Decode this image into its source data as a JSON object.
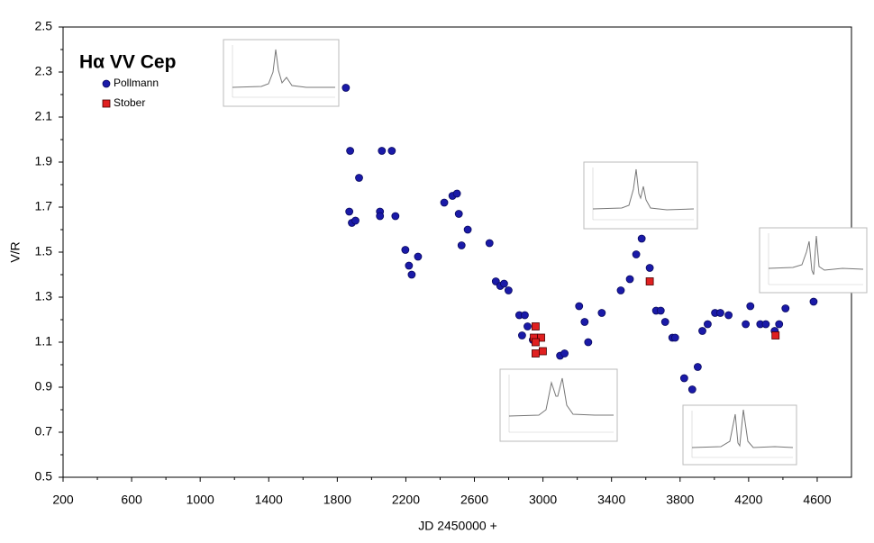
{
  "chart_data": {
    "type": "scatter",
    "title": "Hα VV Cep",
    "x_label": "JD 2450000 +",
    "y_label": "V/R",
    "xlim": [
      200,
      4800
    ],
    "xticks": [
      200,
      600,
      1000,
      1400,
      1800,
      2200,
      2600,
      3000,
      3400,
      3800,
      4200,
      4600
    ],
    "ylim": [
      0.5,
      2.5
    ],
    "yticks": [
      0.5,
      0.7,
      0.9,
      1.1,
      1.3,
      1.5,
      1.7,
      1.9,
      2.1,
      2.3,
      2.5
    ],
    "grid": false,
    "series": [
      {
        "name": "Pollmann",
        "color": "#1a1aa8",
        "marker": "circle",
        "x": [
          1850,
          1875,
          1870,
          1885,
          1906,
          1927,
          2060,
          2118,
          2049,
          2049,
          2139,
          2197,
          2218,
          2234,
          2271,
          2424,
          2472,
          2498,
          2509,
          2525,
          2561,
          2688,
          2725,
          2751,
          2773,
          2799,
          2862,
          2894,
          2878,
          2910,
          2941,
          3100,
          3126,
          3211,
          3243,
          3264,
          3343,
          3454,
          3507,
          3544,
          3576,
          3623,
          3660,
          3687,
          3713,
          3755,
          3771,
          3824,
          3871,
          3903,
          3930,
          3961,
          4004,
          4035,
          4083,
          4183,
          4210,
          4268,
          4300,
          4352,
          4378,
          4415,
          4579
        ],
        "values": [
          2.23,
          1.95,
          1.68,
          1.63,
          1.64,
          1.83,
          1.95,
          1.95,
          1.68,
          1.66,
          1.66,
          1.51,
          1.44,
          1.4,
          1.48,
          1.72,
          1.75,
          1.76,
          1.67,
          1.53,
          1.6,
          1.54,
          1.37,
          1.35,
          1.36,
          1.33,
          1.22,
          1.22,
          1.13,
          1.17,
          1.11,
          1.04,
          1.05,
          1.26,
          1.19,
          1.1,
          1.23,
          1.33,
          1.38,
          1.49,
          1.56,
          1.43,
          1.24,
          1.24,
          1.19,
          1.12,
          1.12,
          0.94,
          0.89,
          0.99,
          1.15,
          1.18,
          1.23,
          1.23,
          1.22,
          1.18,
          1.26,
          1.18,
          1.18,
          1.15,
          1.18,
          1.25,
          1.28
        ]
      },
      {
        "name": "Stober",
        "color": "#e02020",
        "marker": "square",
        "x": [
          2957,
          2947,
          2989,
          2957,
          2957,
          2999,
          3623,
          4357
        ],
        "values": [
          1.17,
          1.12,
          1.12,
          1.1,
          1.05,
          1.06,
          1.37,
          1.13
        ]
      }
    ]
  }
}
